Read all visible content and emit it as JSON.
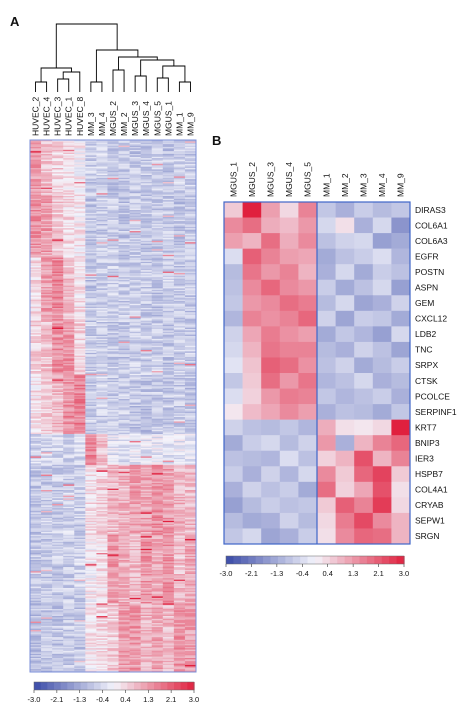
{
  "colors": {
    "low": "#3a4ba8",
    "mid": "#f4f4fb",
    "high": "#e0203e",
    "panel_a_border": "#7b8fd8",
    "panel_b_border": "#3f66c8",
    "dendrogram": "#000000"
  },
  "chart_data": [
    {
      "type": "heatmap",
      "panel_label": "A",
      "columns": [
        "HUVEC_2",
        "HUVEC_4",
        "HUVEC_3",
        "HUVEC_1",
        "HUVEC_8",
        "MM_3",
        "MM_4",
        "MGUS_2",
        "MM_2",
        "MGUS_3",
        "MGUS_4",
        "MGUS_5",
        "MGUS_1",
        "MM_1",
        "MM_9"
      ],
      "column_dendrogram": true,
      "colorbar": {
        "ticks": [
          "-3.0",
          "-2.1",
          "-1.3",
          "-0.4",
          "0.4",
          "1.3",
          "2.1",
          "3.0"
        ],
        "range": [
          -3.0,
          3.0
        ]
      },
      "row_labels_shown": false,
      "approx_row_count": 380
    },
    {
      "type": "heatmap",
      "panel_label": "B",
      "columns": [
        "MGUS_1",
        "MGUS_2",
        "MGUS_3",
        "MGUS_4",
        "MGUS_5",
        "MM_1",
        "MM_2",
        "MM_3",
        "MM_4",
        "MM_9"
      ],
      "group_split_after_column": 5,
      "rows": [
        "DIRAS3",
        "COL6A1",
        "COL6A3",
        "EGFR",
        "POSTN",
        "ASPN",
        "GEM",
        "CXCL12",
        "LDB2",
        "TNC",
        "SRPX",
        "CTSK",
        "PCOLCE",
        "SERPINF1",
        "KRT7",
        "BNIP3",
        "IER3",
        "HSPB7",
        "COL4A1",
        "CRYAB",
        "SEPW1",
        "SRGN"
      ],
      "values": [
        [
          0.6,
          3.0,
          1.2,
          0.4,
          1.6,
          -0.8,
          -1.2,
          -0.7,
          -1.0,
          -0.8
        ],
        [
          1.5,
          1.9,
          1.0,
          0.8,
          1.3,
          -0.5,
          0.3,
          -1.2,
          -0.5,
          -1.7
        ],
        [
          1.2,
          0.9,
          1.9,
          1.0,
          1.5,
          -0.9,
          -0.6,
          -0.5,
          -1.5,
          -1.3
        ],
        [
          -0.4,
          2.1,
          1.6,
          1.2,
          1.1,
          -1.3,
          -0.9,
          -0.7,
          -0.4,
          -1.1
        ],
        [
          -1.0,
          1.8,
          1.3,
          1.6,
          0.9,
          -1.2,
          -0.5,
          -1.3,
          -0.7,
          -0.9
        ],
        [
          -0.9,
          1.5,
          2.0,
          1.5,
          1.3,
          -0.7,
          -1.3,
          -0.9,
          -0.5,
          -1.5
        ],
        [
          -0.8,
          1.3,
          1.5,
          1.9,
          1.7,
          -1.0,
          -0.5,
          -1.4,
          -1.2,
          -0.6
        ],
        [
          -1.1,
          1.6,
          1.4,
          1.6,
          2.0,
          -0.6,
          -1.4,
          -0.7,
          -0.8,
          -1.3
        ],
        [
          -0.6,
          1.1,
          1.7,
          1.4,
          1.2,
          -1.3,
          -0.8,
          -1.1,
          -1.5,
          -0.5
        ],
        [
          -0.5,
          0.9,
          1.8,
          1.6,
          1.6,
          -1.0,
          -1.2,
          -0.6,
          -0.9,
          -1.4
        ],
        [
          -0.3,
          0.7,
          2.1,
          1.9,
          1.4,
          -0.9,
          -0.6,
          -1.3,
          -1.0,
          -0.7
        ],
        [
          -0.8,
          0.6,
          1.9,
          1.3,
          1.8,
          -1.1,
          -0.9,
          -0.5,
          -1.2,
          -1.0
        ],
        [
          -0.4,
          0.5,
          1.3,
          1.7,
          1.6,
          -0.8,
          -1.1,
          -0.9,
          -0.7,
          -1.2
        ],
        [
          0.2,
          0.8,
          1.1,
          1.5,
          1.2,
          -1.2,
          -0.9,
          -1.0,
          -1.3,
          -0.8
        ],
        [
          -0.6,
          -0.9,
          -1.0,
          -0.8,
          -1.1,
          1.0,
          0.3,
          0.2,
          0.4,
          3.0
        ],
        [
          -1.3,
          -0.7,
          -0.5,
          -1.0,
          -0.6,
          1.3,
          -1.2,
          0.9,
          1.6,
          2.0
        ],
        [
          -0.9,
          -1.0,
          -1.1,
          -0.4,
          -0.9,
          0.5,
          0.9,
          2.3,
          0.9,
          1.6
        ],
        [
          -0.7,
          -1.2,
          -0.6,
          -1.1,
          -0.5,
          1.5,
          0.6,
          2.0,
          2.5,
          0.6
        ],
        [
          -1.2,
          -0.6,
          -0.9,
          -0.7,
          -1.3,
          1.9,
          0.5,
          1.1,
          2.3,
          0.3
        ],
        [
          -1.5,
          -1.0,
          -0.7,
          -0.9,
          -0.8,
          0.6,
          2.1,
          1.6,
          2.6,
          0.4
        ],
        [
          -1.0,
          -1.3,
          -1.2,
          -0.6,
          -1.0,
          0.4,
          1.7,
          2.4,
          1.5,
          0.9
        ],
        [
          -0.8,
          -0.5,
          -1.4,
          -1.2,
          -0.7,
          0.3,
          1.5,
          2.0,
          1.9,
          0.9
        ]
      ],
      "colorbar": {
        "ticks": [
          "-3.0",
          "-2.1",
          "-1.3",
          "-0.4",
          "0.4",
          "1.3",
          "2.1",
          "3.0"
        ],
        "range": [
          -3.0,
          3.0
        ]
      }
    }
  ]
}
